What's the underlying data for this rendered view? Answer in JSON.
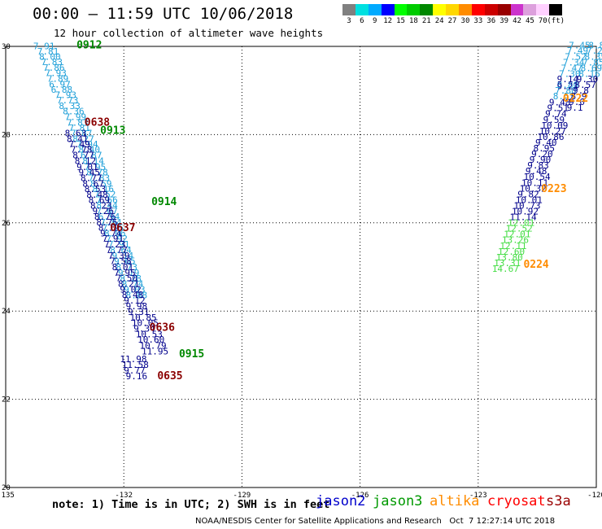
{
  "header": {
    "title": "00:00 – 11:59 UTC 10/06/2018",
    "subtitle": "12 hour collection of altimeter wave heights"
  },
  "scale": {
    "colors": [
      "#808080",
      "#00e0e0",
      "#00aaff",
      "#0000ff",
      "#00ff00",
      "#00cc00",
      "#008800",
      "#ffff00",
      "#ffd700",
      "#ff8c00",
      "#ff0000",
      "#cc0000",
      "#990000",
      "#cc33cc",
      "#dda0dd",
      "#ffd0ff",
      "#000000"
    ],
    "labels": [
      "3",
      "6",
      "9",
      "12",
      "15",
      "18",
      "21",
      "24",
      "27",
      "30",
      "33",
      "36",
      "39",
      "42",
      "45",
      "70",
      "(ft)"
    ]
  },
  "map": {
    "lon_labels": [
      "-135",
      "-132",
      "-129",
      "-126",
      "-123",
      "-120"
    ],
    "lat_labels": [
      "20",
      "22",
      "24",
      "26",
      "28",
      "30"
    ],
    "lon_ticks": [
      -135,
      -132,
      -129,
      -126,
      -123,
      -120
    ],
    "lat_ticks": [
      20,
      22,
      24,
      26,
      28,
      30
    ],
    "passes": [
      {
        "sat": "cryosat",
        "pts": [
          [
            -134.3,
            29.94,
            "7.91"
          ],
          [
            -134.2,
            29.82,
            "7.81"
          ],
          [
            -134.15,
            29.7,
            "8.00"
          ],
          [
            -134.1,
            29.58,
            "7.83"
          ],
          [
            -134.05,
            29.45,
            "7.86"
          ],
          [
            -134.0,
            29.33,
            "7.93"
          ],
          [
            -133.95,
            29.2,
            "7.89"
          ],
          [
            -133.9,
            29.07,
            "6.97"
          ],
          [
            -133.85,
            28.95,
            "6.88"
          ],
          [
            -133.75,
            28.83,
            "7.93"
          ],
          [
            -133.7,
            28.71,
            "7.73"
          ],
          [
            -133.65,
            28.58,
            "8.33"
          ],
          [
            -133.55,
            28.46,
            "8.36"
          ],
          [
            -133.5,
            28.33,
            "7.99"
          ],
          [
            -133.45,
            28.2,
            "7.83"
          ],
          [
            -133.4,
            28.08,
            "7.81"
          ],
          [
            -133.35,
            27.96,
            "7.87"
          ],
          [
            -133.3,
            27.83,
            "8.27"
          ],
          [
            -133.2,
            27.71,
            "7.94"
          ],
          [
            -133.15,
            27.59,
            "8.40"
          ],
          [
            -133.1,
            27.46,
            "6.87"
          ],
          [
            -133.05,
            27.33,
            "8.14"
          ],
          [
            -133.0,
            27.2,
            "7.95"
          ],
          [
            -132.95,
            27.08,
            "8.78"
          ],
          [
            -132.9,
            26.95,
            "7.83"
          ],
          [
            -132.85,
            26.82,
            "8.59"
          ],
          [
            -132.8,
            26.7,
            "8.16"
          ],
          [
            -132.75,
            26.58,
            "7.52"
          ],
          [
            -132.7,
            26.45,
            "7.66"
          ],
          [
            -132.7,
            26.33,
            "8.44"
          ],
          [
            -132.7,
            26.2,
            "7.07"
          ],
          [
            -132.65,
            26.07,
            "6.94"
          ],
          [
            -132.6,
            25.94,
            "7.84"
          ],
          [
            -132.55,
            25.82,
            "7.15"
          ],
          [
            -132.5,
            25.69,
            "8.06"
          ],
          [
            -132.45,
            25.57,
            "7.92"
          ],
          [
            -132.4,
            25.44,
            "7.91"
          ],
          [
            -132.35,
            25.31,
            "8.64"
          ],
          [
            -132.3,
            25.18,
            "9.14"
          ],
          [
            -132.25,
            25.06,
            "9.65"
          ],
          [
            -132.2,
            24.93,
            "8.73"
          ],
          [
            -132.15,
            24.8,
            "9.19"
          ],
          [
            -132.1,
            24.67,
            "8.28"
          ],
          [
            -132.05,
            24.55,
            "8.74"
          ],
          [
            -132.0,
            24.42,
            "9.03"
          ],
          [
            -131.95,
            24.29,
            "8.88"
          ]
        ]
      },
      {
        "sat": "jason2",
        "pts": [
          [
            -133.5,
            27.96,
            "8.63"
          ],
          [
            -133.45,
            27.83,
            "8.41"
          ],
          [
            -133.4,
            27.71,
            "7.49"
          ],
          [
            -133.35,
            27.59,
            "7.78"
          ],
          [
            -133.3,
            27.46,
            "8.77"
          ],
          [
            -133.25,
            27.33,
            "8.12"
          ],
          [
            -133.2,
            27.2,
            "9.01"
          ],
          [
            -133.15,
            27.08,
            "9.45"
          ],
          [
            -133.1,
            26.95,
            "8.77"
          ],
          [
            -133.05,
            26.82,
            "8.67"
          ],
          [
            -133.0,
            26.7,
            "8.53"
          ],
          [
            -132.95,
            26.57,
            "8.48"
          ],
          [
            -132.9,
            26.45,
            "8.69"
          ],
          [
            -132.85,
            26.32,
            "8.23"
          ],
          [
            -132.8,
            26.2,
            "9.26"
          ],
          [
            -132.75,
            26.07,
            "8.76"
          ],
          [
            -132.7,
            25.94,
            "8.75"
          ],
          [
            -132.65,
            25.82,
            "8.19"
          ],
          [
            -132.6,
            25.69,
            "9.74"
          ],
          [
            -132.55,
            25.57,
            "7.91"
          ],
          [
            -132.5,
            25.44,
            "7.23"
          ],
          [
            -132.45,
            25.31,
            "7.77"
          ],
          [
            -132.4,
            25.18,
            "7.39"
          ],
          [
            -132.35,
            25.06,
            "7.58"
          ],
          [
            -132.3,
            24.93,
            "8.01"
          ],
          [
            -132.25,
            24.8,
            "7.95"
          ],
          [
            -132.2,
            24.68,
            "7.50"
          ],
          [
            -132.15,
            24.55,
            "8.21"
          ],
          [
            -132.1,
            24.42,
            "9.02"
          ],
          [
            -132.05,
            24.3,
            "8.48"
          ],
          [
            -132.0,
            24.17,
            "9.12"
          ],
          [
            -131.95,
            24.04,
            "9.98"
          ],
          [
            -131.9,
            23.91,
            "9.31"
          ],
          [
            -131.85,
            23.78,
            "10.85"
          ],
          [
            -131.8,
            23.66,
            "10.05"
          ],
          [
            -131.75,
            23.53,
            "9.34"
          ],
          [
            -131.7,
            23.4,
            "10.53"
          ],
          [
            -131.65,
            23.28,
            "10.60"
          ],
          [
            -131.6,
            23.15,
            "10.79"
          ],
          [
            -131.55,
            23.02,
            "11.95"
          ]
        ]
      },
      {
        "sat": "jason2",
        "pts": [
          [
            -132.1,
            22.84,
            "11.98"
          ],
          [
            -132.05,
            22.71,
            "11.58"
          ],
          [
            -132.0,
            22.58,
            "9.77"
          ],
          [
            -131.95,
            22.45,
            "9.16"
          ]
        ]
      },
      {
        "sat": "cryosat",
        "pts": [
          [
            -120.7,
            29.95,
            "7.45"
          ],
          [
            -120.75,
            29.83,
            "7.49"
          ],
          [
            -120.8,
            29.7,
            "7.52"
          ],
          [
            -120.85,
            29.57,
            "7.34"
          ],
          [
            -120.9,
            29.44,
            "7.47"
          ],
          [
            -120.95,
            29.31,
            "7.30"
          ],
          [
            -121.0,
            29.06,
            "8.80"
          ],
          [
            -121.05,
            28.93,
            "7.80"
          ],
          [
            -121.1,
            28.8,
            "8.53"
          ]
        ]
      },
      {
        "sat": "jason2",
        "pts": [
          [
            -121.0,
            29.19,
            "9.14"
          ],
          [
            -121.0,
            29.03,
            "9.21"
          ],
          [
            -121.2,
            28.66,
            "9.48"
          ],
          [
            -121.25,
            28.53,
            "9.51"
          ],
          [
            -121.3,
            28.4,
            "9.74"
          ],
          [
            -121.35,
            28.27,
            "9.59"
          ],
          [
            -121.4,
            28.14,
            "10.09"
          ],
          [
            -121.45,
            28.01,
            "10.27"
          ],
          [
            -121.5,
            27.88,
            "10.86"
          ],
          [
            -121.55,
            27.75,
            "9.40"
          ],
          [
            -121.6,
            27.62,
            "8.95"
          ],
          [
            -121.65,
            27.49,
            "9.20"
          ],
          [
            -121.7,
            27.36,
            "9.90"
          ],
          [
            -121.75,
            27.23,
            "9.83"
          ],
          [
            -121.8,
            27.1,
            "9.48"
          ],
          [
            -121.85,
            26.97,
            "10.54"
          ],
          [
            -121.9,
            26.84,
            "10.11"
          ],
          [
            -121.95,
            26.71,
            "10.32"
          ],
          [
            -122.0,
            26.58,
            "9.82"
          ],
          [
            -122.05,
            26.45,
            "10.01"
          ],
          [
            -122.1,
            26.32,
            "10.73"
          ],
          [
            -122.15,
            26.19,
            "10.92"
          ],
          [
            -122.2,
            26.06,
            "11.14"
          ]
        ]
      },
      {
        "sat": "jason3",
        "pts": [
          [
            -122.25,
            25.93,
            "12.01"
          ],
          [
            -122.3,
            25.8,
            "12.52"
          ],
          [
            -122.35,
            25.67,
            "12.01"
          ],
          [
            -122.4,
            25.54,
            "13.26"
          ],
          [
            -122.45,
            25.41,
            "12.11"
          ],
          [
            -122.5,
            25.28,
            "12.60"
          ],
          [
            -122.55,
            25.15,
            "13.80"
          ],
          [
            -122.6,
            25.02,
            "13.31"
          ],
          [
            -122.65,
            24.89,
            "14.67"
          ]
        ]
      },
      {
        "sat": "cryosat",
        "pts": [
          [
            -120.2,
            29.95,
            "8.85"
          ],
          [
            -120.25,
            29.83,
            "7.28"
          ],
          [
            -120.3,
            29.7,
            "8.35"
          ],
          [
            -120.35,
            29.57,
            "7.85"
          ],
          [
            -120.4,
            29.44,
            "8.69"
          ],
          [
            -120.45,
            29.31,
            "8.16"
          ]
        ]
      },
      {
        "sat": "jason2",
        "pts": [
          [
            -120.5,
            29.19,
            "9.30"
          ],
          [
            -120.55,
            29.06,
            "8.57"
          ],
          [
            -120.6,
            28.93,
            "9.8"
          ],
          [
            -120.65,
            28.8,
            "8.9"
          ],
          [
            -120.7,
            28.67,
            "9.0"
          ],
          [
            -120.75,
            28.54,
            "9.1"
          ]
        ]
      }
    ],
    "times": [
      {
        "sat": "jason3",
        "lon": -133.2,
        "lat": 29.95,
        "text": "0912"
      },
      {
        "sat": "s3a",
        "lon": -133.0,
        "lat": 28.2,
        "text": "0638"
      },
      {
        "sat": "jason3",
        "lon": -132.6,
        "lat": 28.02,
        "text": "0913"
      },
      {
        "sat": "jason3",
        "lon": -131.3,
        "lat": 26.4,
        "text": "0914"
      },
      {
        "sat": "s3a",
        "lon": -132.35,
        "lat": 25.81,
        "text": "0637"
      },
      {
        "sat": "jason3",
        "lon": -130.6,
        "lat": 22.95,
        "text": "0915"
      },
      {
        "sat": "s3a",
        "lon": -131.35,
        "lat": 23.55,
        "text": "0636"
      },
      {
        "sat": "s3a",
        "lon": -131.15,
        "lat": 22.45,
        "text": "0635"
      },
      {
        "sat": "altika",
        "lon": -120.85,
        "lat": 28.75,
        "text": "0222"
      },
      {
        "sat": "altika",
        "lon": -121.4,
        "lat": 26.7,
        "text": "0223"
      },
      {
        "sat": "altika",
        "lon": -121.85,
        "lat": 24.98,
        "text": "0224"
      }
    ]
  },
  "legend": {
    "note": "note: 1) Time is in UTC; 2) SWH is in feet",
    "sats": [
      {
        "label": "jason2",
        "color": "#0000cc"
      },
      {
        "label": "jason3",
        "color": "#009900"
      },
      {
        "label": "altika",
        "color": "#ff8c00"
      },
      {
        "label": "cryosat",
        "color": "#ff0000"
      },
      {
        "label": "s3a",
        "color": "#990000"
      }
    ],
    "colors": {
      "jason2": "#00008b",
      "jason3": "#008800",
      "altika": "#ff8c00",
      "cryosat": "#1e9fd8",
      "s3a": "#8b0000",
      "j3dots": "#44dd44"
    }
  },
  "credit": "NOAA/NESDIS Center for Satellite Applications and Research   Oct  7 12:27:14 UTC 2018"
}
